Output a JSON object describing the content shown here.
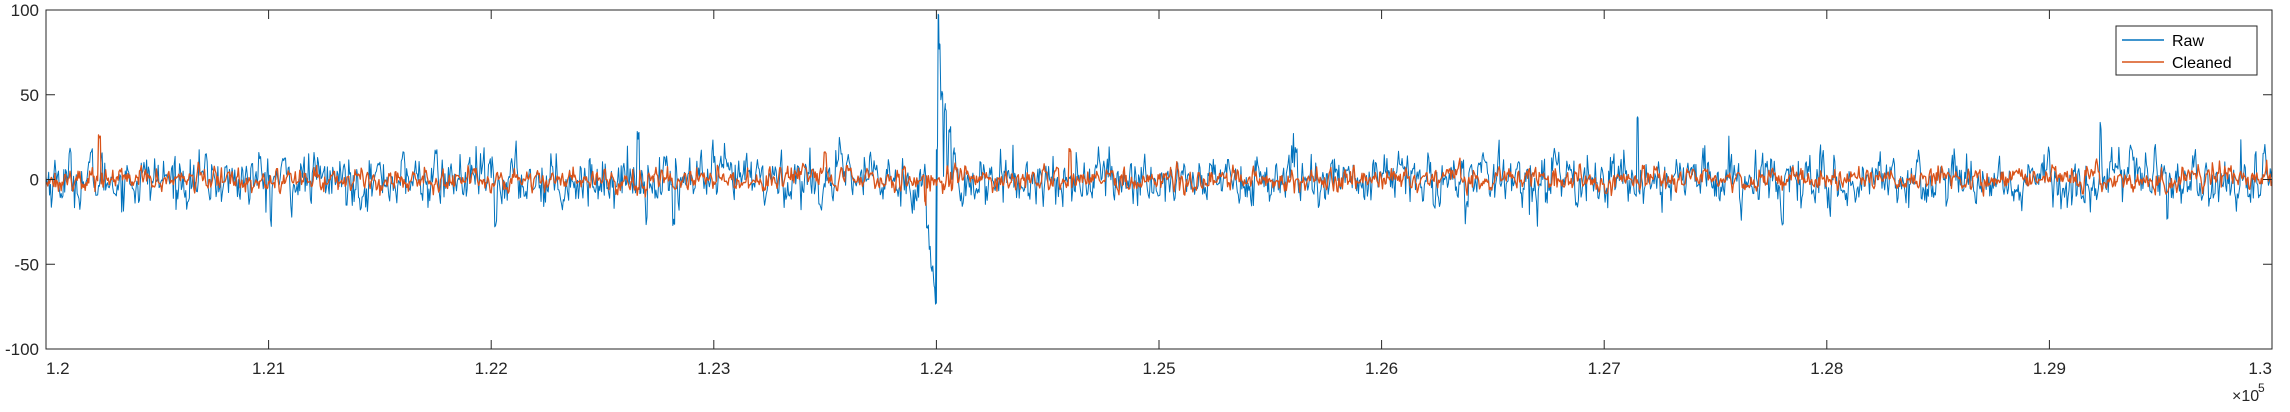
{
  "chart_data": {
    "type": "line",
    "title": "",
    "xlabel": "",
    "ylabel": "",
    "xlim": [
      120000,
      130000
    ],
    "ylim": [
      -100,
      100
    ],
    "x_ticks": [
      120000,
      121000,
      122000,
      123000,
      124000,
      125000,
      126000,
      127000,
      128000,
      129000,
      130000
    ],
    "x_tick_labels": [
      "1.2",
      "1.21",
      "1.22",
      "1.23",
      "1.24",
      "1.25",
      "1.26",
      "1.27",
      "1.28",
      "1.29",
      "1.3"
    ],
    "x_exponent_label": {
      "base": "×10",
      "power": "5"
    },
    "y_ticks": [
      -100,
      -50,
      0,
      50,
      100
    ],
    "y_tick_labels": [
      "-100",
      "-50",
      "0",
      "50",
      "100"
    ],
    "grid": false,
    "legend_position": "top-right",
    "sample_step": 4,
    "series": [
      {
        "name": "Raw",
        "color": "#0072BD",
        "noise_std": 7,
        "events": [
          {
            "x": 123960,
            "y": -28
          },
          {
            "x": 123970,
            "y": -40
          },
          {
            "x": 123980,
            "y": -52
          },
          {
            "x": 123990,
            "y": -63
          },
          {
            "x": 124000,
            "y": -73
          },
          {
            "x": 124005,
            "y": 20
          },
          {
            "x": 124010,
            "y": 97
          },
          {
            "x": 124015,
            "y": 80
          },
          {
            "x": 124025,
            "y": 52
          },
          {
            "x": 124040,
            "y": 42
          },
          {
            "x": 124060,
            "y": 28
          },
          {
            "x": 124080,
            "y": 15
          },
          {
            "x": 121010,
            "y": -25
          },
          {
            "x": 122020,
            "y": -27
          },
          {
            "x": 122660,
            "y": 27
          },
          {
            "x": 122820,
            "y": -26
          },
          {
            "x": 127150,
            "y": 37
          },
          {
            "x": 127800,
            "y": -26
          },
          {
            "x": 129230,
            "y": 32
          },
          {
            "x": 129530,
            "y": -22
          }
        ]
      },
      {
        "name": "Cleaned",
        "color": "#D95319",
        "noise_std": 3,
        "events": [
          {
            "x": 120240,
            "y": 25
          },
          {
            "x": 123500,
            "y": 16
          },
          {
            "x": 124600,
            "y": 18
          },
          {
            "x": 123950,
            "y": -13
          },
          {
            "x": 124050,
            "y": 8
          }
        ]
      }
    ]
  }
}
